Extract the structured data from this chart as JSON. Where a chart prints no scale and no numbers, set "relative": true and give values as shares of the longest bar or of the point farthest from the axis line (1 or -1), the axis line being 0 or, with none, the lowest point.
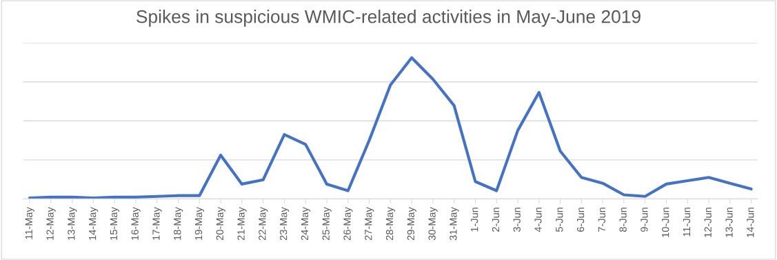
{
  "chart_data": {
    "type": "line",
    "title": "Spikes in suspicious WMIC-related activities in May-June 2019",
    "categories": [
      "11-May",
      "12-May",
      "13-May",
      "14-May",
      "15-May",
      "16-May",
      "17-May",
      "18-May",
      "19-May",
      "20-May",
      "21-May",
      "22-May",
      "23-May",
      "24-May",
      "25-May",
      "26-May",
      "27-May",
      "28-May",
      "29-May",
      "30-May",
      "31-May",
      "1-Jun",
      "2-Jun",
      "3-Jun",
      "4-Jun",
      "5-Jun",
      "6-Jun",
      "7-Jun",
      "8-Jun",
      "9-Jun",
      "10-Jun",
      "11-Jun",
      "12-Jun",
      "13-Jun",
      "14-Jun"
    ],
    "relative": true,
    "series": [
      {
        "color": "#4472c4",
        "values": [
          0.006,
          0.012,
          0.012,
          0.006,
          0.012,
          0.012,
          0.018,
          0.023,
          0.023,
          0.31,
          0.105,
          0.135,
          0.456,
          0.386,
          0.105,
          0.058,
          0.415,
          0.807,
          1,
          0.848,
          0.661,
          0.123,
          0.058,
          0.485,
          0.754,
          0.339,
          0.152,
          0.111,
          0.029,
          0.018,
          0.105,
          0.129,
          0.152,
          0.111,
          0.07
        ]
      }
    ],
    "grid": "y",
    "legend": false,
    "marker": "none",
    "line_style": "solid"
  }
}
